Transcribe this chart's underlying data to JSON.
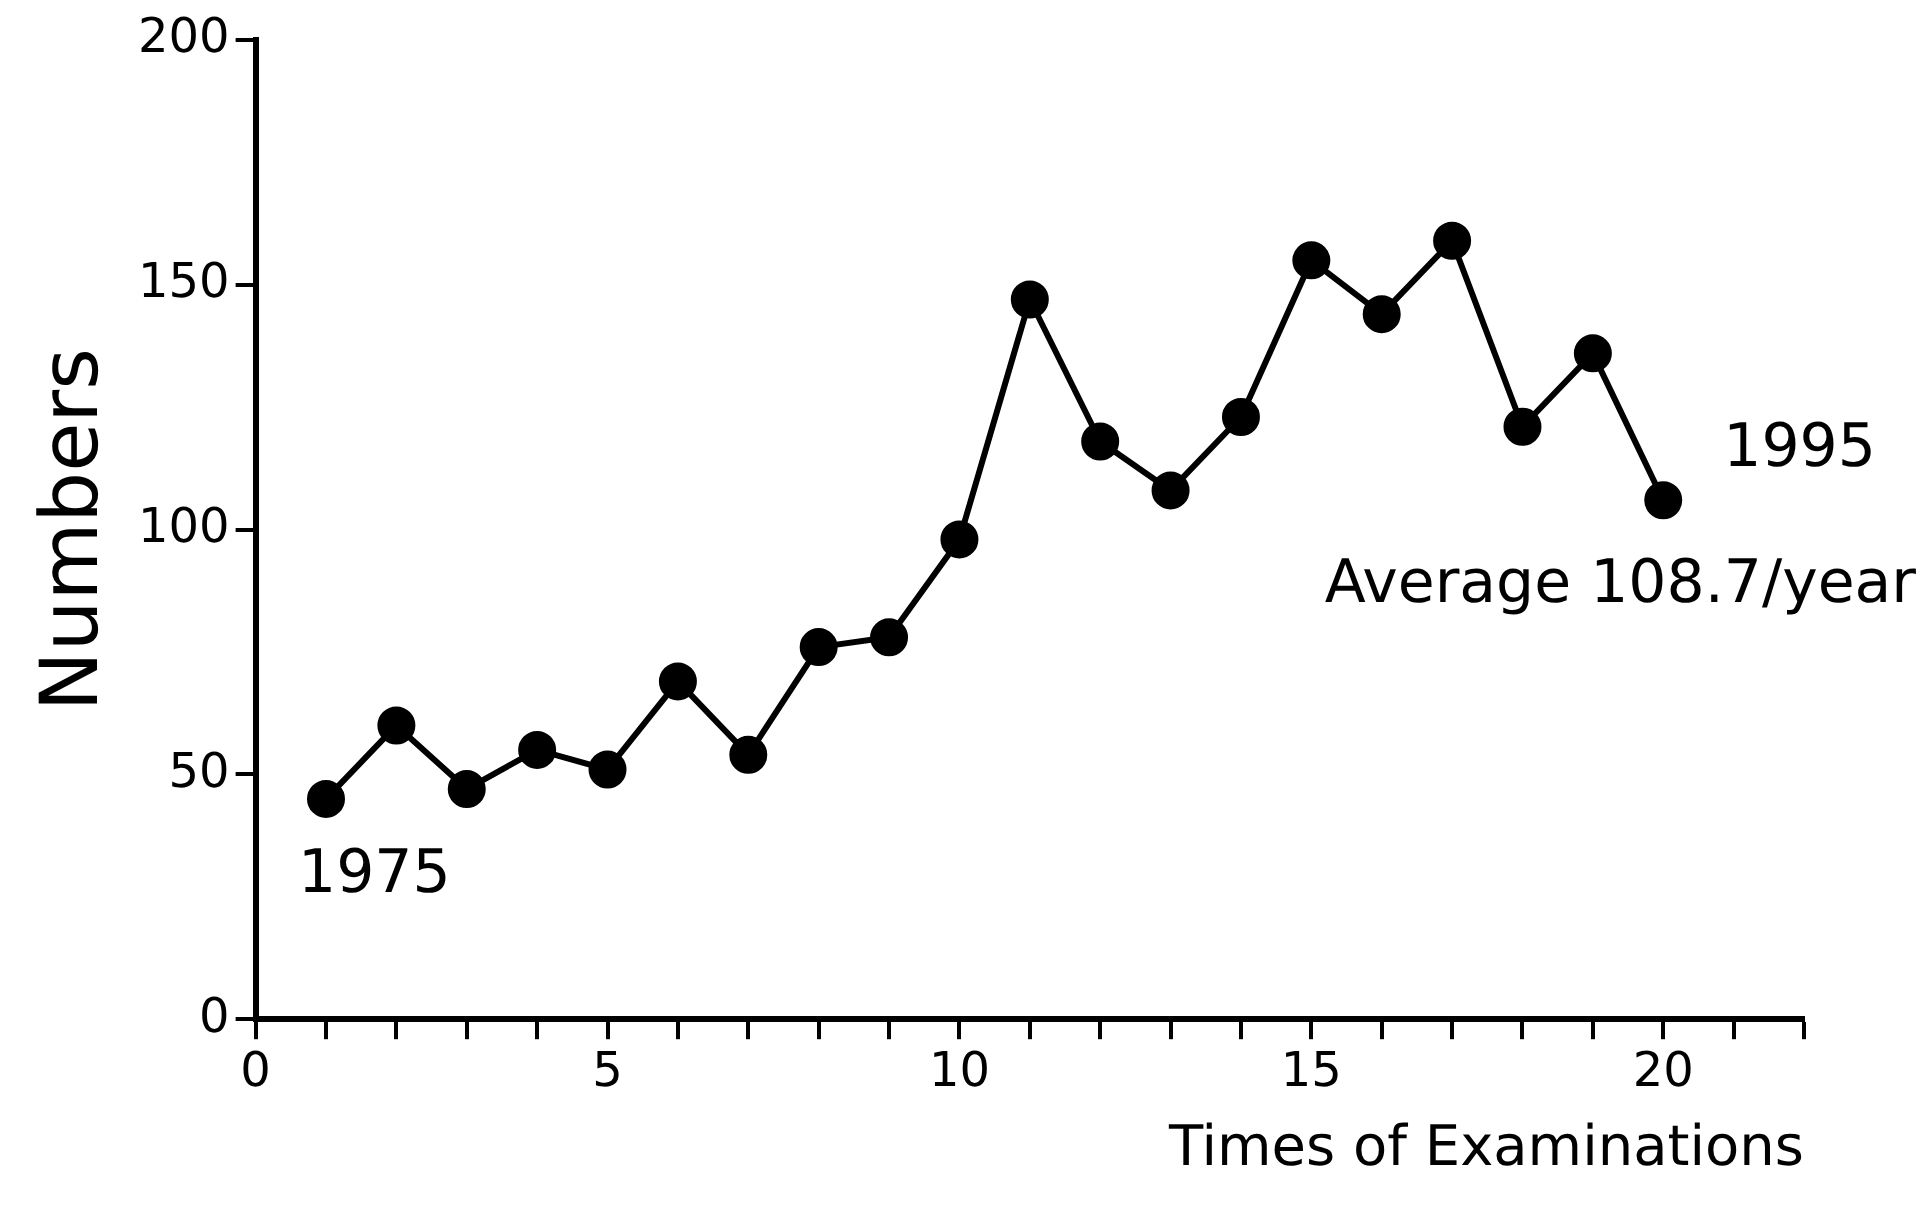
{
  "chart_data": {
    "type": "line",
    "xlabel": "Times of Examinations",
    "ylabel": "Numbers",
    "x": [
      1,
      2,
      3,
      4,
      5,
      6,
      7,
      8,
      9,
      10,
      11,
      12,
      13,
      14,
      15,
      16,
      17,
      18,
      19,
      20
    ],
    "series": [
      {
        "color": "#000000",
        "values": [
          45,
          60,
          47,
          55,
          51,
          69,
          54,
          76,
          78,
          98,
          147,
          118,
          108,
          123,
          155,
          144,
          159,
          121,
          136,
          106
        ]
      }
    ],
    "xlim": [
      0,
      22
    ],
    "xticks": [
      0,
      {
        "value": 1,
        "label": null
      },
      {
        "value": 2,
        "label": null
      },
      {
        "value": 3,
        "label": null
      },
      {
        "value": 4,
        "label": null
      },
      5,
      {
        "value": 6,
        "label": null
      },
      {
        "value": 7,
        "label": null
      },
      {
        "value": 8,
        "label": null
      },
      {
        "value": 9,
        "label": null
      },
      10,
      {
        "value": 11,
        "label": null
      },
      {
        "value": 12,
        "label": null
      },
      {
        "value": 13,
        "label": null
      },
      {
        "value": 14,
        "label": null
      },
      15,
      {
        "value": 16,
        "label": null
      },
      {
        "value": 17,
        "label": null
      },
      {
        "value": 18,
        "label": null
      },
      {
        "value": 19,
        "label": null
      },
      20,
      {
        "value": 21,
        "label": null
      },
      {
        "value": 22,
        "label": null
      }
    ],
    "ylim": [
      0,
      200
    ],
    "yticks": [
      0,
      50,
      100,
      150,
      200
    ],
    "grid": false,
    "legend": false,
    "marker": "circle",
    "line_style": "solid",
    "annotations": [
      {
        "text": "1975",
        "x": 1,
        "y": 45
      },
      {
        "text": "1995",
        "x": 20,
        "y": 106
      },
      "Average 108.7/year"
    ]
  }
}
